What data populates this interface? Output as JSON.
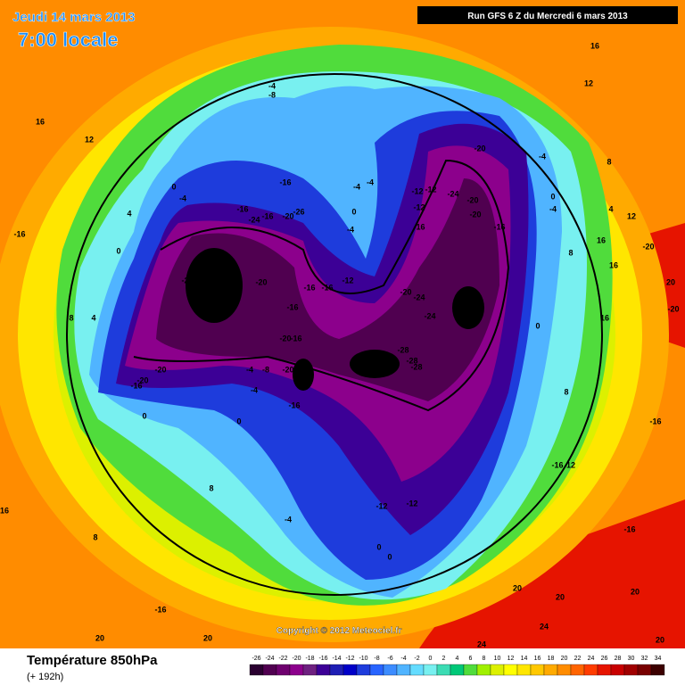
{
  "header": {
    "date": "Jeudi 14 mars 2013",
    "time": "7:00 locale",
    "run": "Run GFS 6 Z du Mercredi 6 mars 2013"
  },
  "footer": {
    "copyright": "Copyright © 2012 Meteociel.fr",
    "title": "Température 850hPa",
    "lead": "(+ 192h)"
  },
  "legend": {
    "ticks": [
      -26,
      -24,
      -22,
      -20,
      -18,
      -16,
      -14,
      -12,
      -10,
      -8,
      -6,
      -4,
      -2,
      0,
      2,
      4,
      6,
      8,
      10,
      12,
      14,
      16,
      18,
      20,
      22,
      24,
      26,
      28,
      30,
      32,
      34
    ],
    "colors": [
      "#2a0030",
      "#500050",
      "#6e006e",
      "#8c008c",
      "#6e2080",
      "#3c0096",
      "#1e1eb4",
      "#0000c8",
      "#1e3cdc",
      "#2864ff",
      "#3c8cff",
      "#50b4ff",
      "#64dcff",
      "#78f0f0",
      "#3cdcb4",
      "#00c878",
      "#50dc3c",
      "#a0f000",
      "#dcf000",
      "#ffff00",
      "#ffe600",
      "#ffc800",
      "#ffaa00",
      "#ff8c00",
      "#ff6400",
      "#ff3c00",
      "#e61400",
      "#c80000",
      "#a00000",
      "#780000",
      "#3c0000"
    ]
  },
  "contour_labels": [
    -4,
    -8,
    0,
    -4,
    -16,
    -24,
    -16,
    -20,
    -26,
    -16,
    -28,
    -24,
    -20,
    -16,
    -16,
    -12,
    -16,
    -20,
    -16,
    -20,
    -8,
    -4,
    -4,
    -16,
    -20,
    -20,
    -16,
    0,
    0,
    8,
    -4,
    -12,
    -12,
    0,
    0,
    -16,
    20,
    20,
    16,
    8,
    -4,
    -4,
    0,
    -4,
    -12,
    -12,
    -12,
    -24,
    -20,
    -20,
    -20,
    -16,
    -16,
    -20,
    -24,
    -24,
    -28,
    -28,
    -28,
    -4,
    0,
    -4,
    0,
    8,
    4,
    12,
    16,
    16,
    -20,
    20,
    -20,
    16,
    8,
    -16,
    12,
    -16,
    -16,
    20,
    20,
    24,
    20,
    24,
    20,
    12,
    16,
    16,
    12,
    -16,
    4,
    0,
    8,
    4,
    8
  ]
}
